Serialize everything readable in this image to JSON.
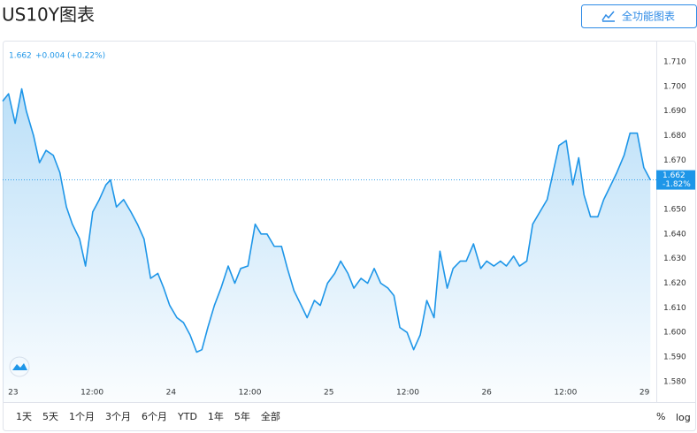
{
  "header": {
    "title": "US10Y图表",
    "button": "全功能图表"
  },
  "chart_data": {
    "type": "area",
    "quote": {
      "last": "1.662",
      "change": "+0.004",
      "change_percent": "(+0.22%)"
    },
    "price_tag": {
      "value": "1.662",
      "change": "-1.82%"
    },
    "color": "#1e96e8",
    "x": [
      -1.6,
      -0.7,
      0.3,
      1.3,
      2.0,
      3.1,
      4.0,
      5.0,
      6.1,
      7.1,
      8.1,
      9.0,
      10.1,
      11.0,
      12.1,
      13.1,
      14.1,
      14.8,
      15.7,
      16.8,
      17.9,
      18.9,
      19.9,
      20.9,
      22.0,
      22.9,
      23.8,
      24.9,
      25.9,
      26.9,
      27.9,
      28.7,
      29.6,
      30.6,
      31.6,
      32.7,
      33.7,
      34.6,
      35.7,
      36.8,
      37.7,
      38.6,
      39.7,
      40.8,
      41.7,
      42.7,
      43.8,
      44.7,
      45.8,
      46.7,
      47.8,
      48.9,
      49.8,
      50.9,
      51.8,
      52.9,
      53.9,
      54.9,
      55.9,
      57.0,
      57.9,
      58.8,
      59.9,
      60.9,
      61.9,
      62.9,
      64.0,
      64.9,
      66.0,
      66.9,
      68.0,
      68.9,
      70.0,
      71.1,
      72.0,
      73.1,
      74.1,
      75.0,
      76.1,
      77.0,
      78.1,
      79.0,
      80.1,
      81.2,
      82.1,
      83.0,
      84.1,
      85.1,
      86.0,
      86.8,
      87.8,
      88.9,
      89.8,
      90.9,
      91.8,
      92.9,
      93.8,
      94.9,
      95.9,
      96.9
    ],
    "series": [
      {
        "name": "US10Y",
        "color": "#1e96e8",
        "values": [
          1.694,
          1.697,
          1.685,
          1.699,
          1.69,
          1.68,
          1.669,
          1.674,
          1.672,
          1.665,
          1.651,
          1.644,
          1.638,
          1.627,
          1.649,
          1.654,
          1.66,
          1.662,
          1.651,
          1.654,
          1.649,
          1.644,
          1.638,
          1.622,
          1.624,
          1.618,
          1.611,
          1.606,
          1.604,
          1.599,
          1.592,
          1.593,
          1.602,
          1.611,
          1.618,
          1.627,
          1.62,
          1.626,
          1.627,
          1.644,
          1.64,
          1.64,
          1.635,
          1.635,
          1.626,
          1.617,
          1.611,
          1.606,
          1.613,
          1.611,
          1.62,
          1.624,
          1.629,
          1.624,
          1.618,
          1.622,
          1.62,
          1.626,
          1.62,
          1.618,
          1.615,
          1.602,
          1.6,
          1.593,
          1.599,
          1.613,
          1.606,
          1.633,
          1.618,
          1.626,
          1.629,
          1.629,
          1.636,
          1.626,
          1.629,
          1.627,
          1.629,
          1.627,
          1.631,
          1.627,
          1.629,
          1.644,
          1.649,
          1.654,
          1.665,
          1.676,
          1.678,
          1.66,
          1.671,
          1.656,
          1.647,
          1.647,
          1.654,
          1.66,
          1.665,
          1.672,
          1.681,
          1.681,
          1.667,
          1.662
        ]
      }
    ],
    "xlim": [
      -1.6,
      97.8
    ],
    "xticks": [
      {
        "value": 0,
        "label": "23"
      },
      {
        "value": 12,
        "label": "12:00"
      },
      24,
      {
        "value": 36,
        "label": "12:00"
      },
      {
        "value": 48,
        "label": "25"
      },
      {
        "value": 60,
        "label": "12:00"
      },
      {
        "value": 72,
        "label": "26"
      },
      {
        "value": 84,
        "label": "12:00"
      },
      {
        "value": 96,
        "label": "29"
      }
    ],
    "ylim": [
      1.5717,
      1.7186
    ],
    "yticks": [
      {
        "value": 1.58,
        "label": "1.580"
      },
      {
        "value": 1.59,
        "label": "1.590"
      },
      {
        "value": 1.6,
        "label": "1.600"
      },
      {
        "value": 1.61,
        "label": "1.610"
      },
      {
        "value": 1.62,
        "label": "1.620"
      },
      {
        "value": 1.63,
        "label": "1.630"
      },
      {
        "value": 1.64,
        "label": "1.640"
      },
      {
        "value": 1.65,
        "label": "1.650"
      },
      {
        "value": 1.66,
        "label": "1.660"
      },
      {
        "value": 1.67,
        "label": "1.670"
      },
      {
        "value": 1.68,
        "label": "1.680"
      },
      {
        "value": 1.69,
        "label": "1.690"
      },
      {
        "value": 1.7,
        "label": "1.700"
      },
      {
        "value": 1.71,
        "label": "1.710"
      }
    ],
    "grid": false
  },
  "toolbar": {
    "ranges": [
      "1天",
      "5天",
      "1个月",
      "3个月",
      "6个月",
      "YTD",
      "1年",
      "5年",
      "全部"
    ],
    "options": [
      "%",
      "log"
    ]
  }
}
